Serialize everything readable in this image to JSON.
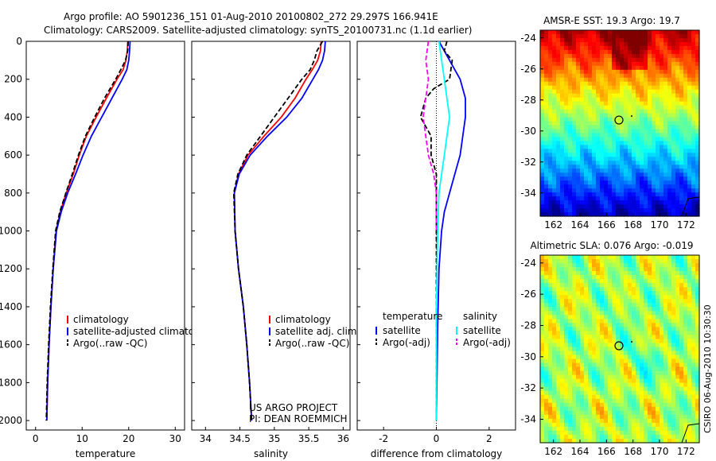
{
  "header": {
    "line1": "Argo profile: AO 5901236_151 01-Aug-2010 20100802_272 29.297S 166.941E",
    "line2": "Climatology: CARS2009. Satellite-adjusted climatology: synTS_20100731.nc (1.1d earlier)"
  },
  "chart_data": [
    {
      "type": "line",
      "xlabel": "temperature",
      "ylabel": "",
      "xlim": [
        -2,
        32
      ],
      "ylim": [
        0,
        2050
      ],
      "y_reversed": true,
      "xticks": [
        0,
        10,
        20,
        30
      ],
      "yticks": [
        0,
        200,
        400,
        600,
        800,
        1000,
        1200,
        1400,
        1600,
        1800,
        2000
      ],
      "legend": [
        "climatology",
        "satellite-adjusted climatology",
        "Argo(..raw -QC)"
      ],
      "series": [
        {
          "name": "climatology",
          "color": "#ff0000",
          "style": "solid",
          "x": [
            19.8,
            19.7,
            19.4,
            18.8,
            17.5,
            15.2,
            13.0,
            10.9,
            9.4,
            8.1,
            6.6,
            5.3,
            4.4,
            3.8,
            3.3,
            2.9,
            2.6,
            2.4
          ],
          "y": [
            0,
            50,
            100,
            150,
            200,
            300,
            400,
            500,
            600,
            700,
            800,
            900,
            1000,
            1200,
            1400,
            1600,
            1800,
            2000
          ]
        },
        {
          "name": "satellite-adjusted climatology",
          "color": "#0000ff",
          "style": "solid",
          "x": [
            20.3,
            20.2,
            20.0,
            19.6,
            18.6,
            16.4,
            14.2,
            12.0,
            10.2,
            8.6,
            6.9,
            5.5,
            4.5,
            3.8,
            3.3,
            2.9,
            2.6,
            2.4
          ],
          "y": [
            0,
            50,
            100,
            150,
            200,
            300,
            400,
            500,
            600,
            700,
            800,
            900,
            1000,
            1200,
            1400,
            1600,
            1800,
            2000
          ]
        },
        {
          "name": "Argo(..raw -QC)",
          "color": "#000000",
          "style": "dashed",
          "x": [
            19.9,
            19.8,
            19.3,
            18.3,
            17.2,
            14.8,
            12.7,
            10.7,
            9.2,
            7.9,
            6.5,
            5.2,
            4.3,
            3.7,
            3.2,
            2.8,
            2.5,
            2.3
          ],
          "y": [
            0,
            50,
            100,
            150,
            200,
            300,
            400,
            500,
            600,
            700,
            800,
            900,
            1000,
            1200,
            1400,
            1600,
            1800,
            2000
          ]
        }
      ]
    },
    {
      "type": "line",
      "xlabel": "salinity",
      "xlim": [
        33.8,
        36.1
      ],
      "ylim": [
        0,
        2050
      ],
      "y_reversed": true,
      "xticks": [
        34,
        34.5,
        35,
        35.5,
        36
      ],
      "legend": [
        "climatology",
        "satellite adj. clim.",
        "Argo(..raw -QC)"
      ],
      "annotation": [
        "US ARGO PROJECT",
        "PI: DEAN ROEMMICH"
      ],
      "series": [
        {
          "name": "climatology",
          "color": "#ff0000",
          "style": "solid",
          "x": [
            35.68,
            35.67,
            35.63,
            35.55,
            35.46,
            35.3,
            35.1,
            34.85,
            34.62,
            34.48,
            34.42,
            34.43,
            34.48,
            34.55,
            34.6,
            34.64,
            34.67
          ],
          "y": [
            0,
            50,
            100,
            150,
            200,
            300,
            400,
            500,
            600,
            700,
            800,
            1000,
            1200,
            1400,
            1600,
            1800,
            2000
          ]
        },
        {
          "name": "satellite adj. clim.",
          "color": "#0000ff",
          "style": "solid",
          "x": [
            35.74,
            35.73,
            35.7,
            35.64,
            35.56,
            35.4,
            35.18,
            34.9,
            34.65,
            34.49,
            34.42,
            34.43,
            34.48,
            34.55,
            34.6,
            34.64,
            34.67
          ],
          "y": [
            0,
            50,
            100,
            150,
            200,
            300,
            400,
            500,
            600,
            700,
            800,
            1000,
            1200,
            1400,
            1600,
            1800,
            2000
          ]
        },
        {
          "name": "Argo(..raw -QC)",
          "color": "#000000",
          "style": "dashed",
          "x": [
            35.7,
            35.62,
            35.58,
            35.52,
            35.4,
            35.2,
            35.0,
            34.8,
            34.6,
            34.47,
            34.41,
            34.43,
            34.48,
            34.55,
            34.6,
            34.64,
            34.67
          ],
          "y": [
            0,
            50,
            100,
            150,
            200,
            300,
            400,
            500,
            600,
            700,
            800,
            1000,
            1200,
            1400,
            1600,
            1800,
            2000
          ]
        }
      ]
    },
    {
      "type": "line",
      "xlabel": "difference from climatology",
      "xlim": [
        -3,
        3
      ],
      "ylim": [
        0,
        2050
      ],
      "y_reversed": true,
      "xticks": [
        -2,
        0,
        2
      ],
      "legend_left": {
        "title": "temperature",
        "items": [
          "satellite",
          "Argo(-adj)"
        ]
      },
      "legend_right": {
        "title": "salinity",
        "items": [
          "satellite",
          "Argo(-adj)"
        ]
      },
      "series": [
        {
          "name": "satellite",
          "group": "temperature",
          "color": "#0000ff",
          "style": "solid",
          "x": [
            0.1,
            0.5,
            0.9,
            1.1,
            1.1,
            1.0,
            0.9,
            0.7,
            0.5,
            0.3,
            0.2,
            0.1,
            0.05,
            0.0
          ],
          "y": [
            0,
            100,
            200,
            300,
            400,
            500,
            600,
            700,
            800,
            900,
            1000,
            1200,
            1500,
            2000
          ]
        },
        {
          "name": "Argo(-adj)",
          "group": "temperature",
          "color": "#000000",
          "style": "dashed",
          "x": [
            0.4,
            0.3,
            0.6,
            0.5,
            -0.1,
            -0.4,
            -0.6,
            -0.2,
            -0.2,
            0.0,
            0.0,
            0.0,
            0.0,
            0.0,
            0.0
          ],
          "y": [
            0,
            50,
            100,
            200,
            250,
            300,
            400,
            500,
            600,
            700,
            800,
            1000,
            1200,
            1500,
            2000
          ]
        },
        {
          "name": "satellite",
          "group": "salinity",
          "color": "#00ffff",
          "style": "solid",
          "x": [
            0.1,
            0.2,
            0.3,
            0.4,
            0.5,
            0.4,
            0.3,
            0.2,
            0.1,
            0.05,
            0.0,
            0.0
          ],
          "y": [
            0,
            100,
            200,
            300,
            400,
            500,
            600,
            700,
            800,
            1000,
            1400,
            2000
          ]
        },
        {
          "name": "Argo(-adj)",
          "group": "salinity",
          "color": "#ff00ff",
          "style": "dashed",
          "x": [
            -0.3,
            -0.4,
            -0.3,
            -0.4,
            -0.5,
            -0.4,
            -0.3,
            -0.1,
            0.0,
            0.0
          ],
          "y": [
            0,
            100,
            200,
            300,
            400,
            500,
            600,
            700,
            800,
            1000
          ]
        }
      ]
    },
    {
      "type": "heatmap",
      "title": "AMSR-E SST: 19.3 Argo: 19.7",
      "xlim": [
        161,
        173
      ],
      "ylim": [
        -35.5,
        -23.5
      ],
      "xticks": [
        162,
        164,
        166,
        168,
        170,
        172
      ],
      "yticks": [
        -24,
        -26,
        -28,
        -30,
        -32,
        -34
      ],
      "colormap": "jet",
      "marker": {
        "x": 166.941,
        "y": -29.297
      }
    },
    {
      "type": "heatmap",
      "title": "Altimetric SLA: 0.076 Argo: -0.019",
      "xlim": [
        161,
        173
      ],
      "ylim": [
        -35.5,
        -23.5
      ],
      "xticks": [
        162,
        164,
        166,
        168,
        170,
        172
      ],
      "yticks": [
        -24,
        -26,
        -28,
        -30,
        -32,
        -34
      ],
      "colormap": "jet",
      "marker": {
        "x": 166.941,
        "y": -29.297
      }
    }
  ],
  "credit": "CSIRO 06-Aug-2010 10:30:30",
  "colors": {
    "red": "#ff0000",
    "blue": "#0000ff",
    "black": "#000000",
    "cyan": "#00ffff",
    "magenta": "#ff00ff"
  }
}
